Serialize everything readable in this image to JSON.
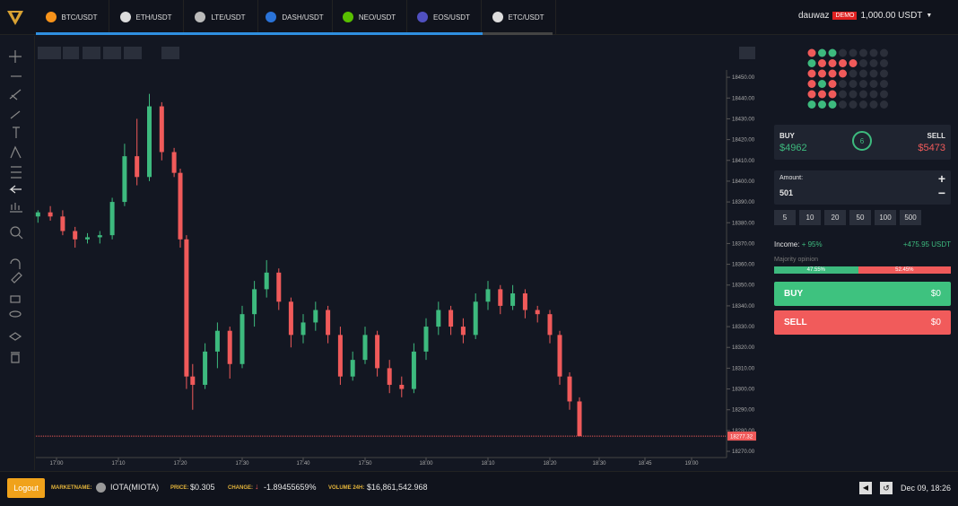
{
  "tabs": [
    "BTC/USDT",
    "ETH/USDT",
    "LTE/USDT",
    "DASH/USDT",
    "NEO/USDT",
    "EOS/USDT",
    "ETC/USDT"
  ],
  "account": {
    "user": "dauwaz",
    "badge": "DEMO",
    "balance": "1,000.00 USDT"
  },
  "chart_data": {
    "type": "candlestick",
    "up_color": "#3dba7e",
    "down_color": "#f05a5a",
    "ylim": [
      18267,
      18453.5
    ],
    "yticks": [
      {
        "value": 18450,
        "label": "18450.00"
      },
      {
        "value": 18440,
        "label": "18440.00"
      },
      {
        "value": 18430,
        "label": "18430.00"
      },
      {
        "value": 18420,
        "label": "18420.00"
      },
      {
        "value": 18410,
        "label": "18410.00"
      },
      {
        "value": 18400,
        "label": "18400.00"
      },
      {
        "value": 18390,
        "label": "18390.00"
      },
      {
        "value": 18380,
        "label": "18380.00"
      },
      {
        "value": 18370,
        "label": "18370.00"
      },
      {
        "value": 18360,
        "label": "18360.00"
      },
      {
        "value": 18350,
        "label": "18350.00"
      },
      {
        "value": 18340,
        "label": "18340.00"
      },
      {
        "value": 18330,
        "label": "18330.00"
      },
      {
        "value": 18320,
        "label": "18320.00"
      },
      {
        "value": 18310,
        "label": "18310.00"
      },
      {
        "value": 18300,
        "label": "18300.00"
      },
      {
        "value": 18290,
        "label": "18290.00"
      },
      {
        "value": 18280,
        "label": "18280.00"
      },
      {
        "value": 18270,
        "label": "18270.00"
      }
    ],
    "xticks": [
      "17:00",
      "17:10",
      "17:20",
      "17:30",
      "17:40",
      "17:50",
      "18:00",
      "18:10",
      "18:20",
      "18:30",
      "18:45",
      "19:00"
    ],
    "last_price": {
      "value": 18277.32,
      "label": "18277.32"
    },
    "candles": [
      {
        "t": "16:57",
        "open": 18383,
        "high": 18386,
        "low": 18380,
        "close": 18385
      },
      {
        "t": "16:59",
        "open": 18385,
        "high": 18388,
        "low": 18381,
        "close": 18383
      },
      {
        "t": "17:01",
        "open": 18383,
        "high": 18386,
        "low": 18374,
        "close": 18376
      },
      {
        "t": "17:03",
        "open": 18376,
        "high": 18378,
        "low": 18368,
        "close": 18372
      },
      {
        "t": "17:05",
        "open": 18372,
        "high": 18375,
        "low": 18370,
        "close": 18373
      },
      {
        "t": "17:07",
        "open": 18373,
        "high": 18376,
        "low": 18370,
        "close": 18374
      },
      {
        "t": "17:09",
        "open": 18374,
        "high": 18392,
        "low": 18372,
        "close": 18390
      },
      {
        "t": "17:11",
        "open": 18390,
        "high": 18418,
        "low": 18388,
        "close": 18412
      },
      {
        "t": "17:13",
        "open": 18412,
        "high": 18430,
        "low": 18398,
        "close": 18402
      },
      {
        "t": "17:15",
        "open": 18402,
        "high": 18442,
        "low": 18400,
        "close": 18436
      },
      {
        "t": "17:17",
        "open": 18436,
        "high": 18438,
        "low": 18410,
        "close": 18414
      },
      {
        "t": "17:19",
        "open": 18414,
        "high": 18416,
        "low": 18402,
        "close": 18404
      },
      {
        "t": "17:20",
        "open": 18404,
        "high": 18406,
        "low": 18368,
        "close": 18372
      },
      {
        "t": "17:21",
        "open": 18372,
        "high": 18374,
        "low": 18300,
        "close": 18306
      },
      {
        "t": "17:22",
        "open": 18306,
        "high": 18312,
        "low": 18290,
        "close": 18302
      },
      {
        "t": "17:24",
        "open": 18302,
        "high": 18322,
        "low": 18300,
        "close": 18318
      },
      {
        "t": "17:26",
        "open": 18318,
        "high": 18332,
        "low": 18310,
        "close": 18328
      },
      {
        "t": "17:28",
        "open": 18328,
        "high": 18330,
        "low": 18305,
        "close": 18312
      },
      {
        "t": "17:30",
        "open": 18312,
        "high": 18340,
        "low": 18310,
        "close": 18336
      },
      {
        "t": "17:32",
        "open": 18336,
        "high": 18352,
        "low": 18330,
        "close": 18348
      },
      {
        "t": "17:34",
        "open": 18348,
        "high": 18362,
        "low": 18344,
        "close": 18356
      },
      {
        "t": "17:36",
        "open": 18356,
        "high": 18358,
        "low": 18338,
        "close": 18342
      },
      {
        "t": "17:38",
        "open": 18342,
        "high": 18344,
        "low": 18320,
        "close": 18326
      },
      {
        "t": "17:40",
        "open": 18326,
        "high": 18336,
        "low": 18322,
        "close": 18332
      },
      {
        "t": "17:42",
        "open": 18332,
        "high": 18342,
        "low": 18328,
        "close": 18338
      },
      {
        "t": "17:44",
        "open": 18338,
        "high": 18340,
        "low": 18322,
        "close": 18326
      },
      {
        "t": "17:46",
        "open": 18326,
        "high": 18330,
        "low": 18302,
        "close": 18306
      },
      {
        "t": "17:48",
        "open": 18306,
        "high": 18318,
        "low": 18304,
        "close": 18314
      },
      {
        "t": "17:50",
        "open": 18314,
        "high": 18330,
        "low": 18312,
        "close": 18326
      },
      {
        "t": "17:52",
        "open": 18326,
        "high": 18328,
        "low": 18306,
        "close": 18310
      },
      {
        "t": "17:54",
        "open": 18310,
        "high": 18314,
        "low": 18298,
        "close": 18302
      },
      {
        "t": "17:56",
        "open": 18302,
        "high": 18306,
        "low": 18296,
        "close": 18300
      },
      {
        "t": "17:58",
        "open": 18300,
        "high": 18322,
        "low": 18298,
        "close": 18318
      },
      {
        "t": "18:00",
        "open": 18318,
        "high": 18334,
        "low": 18314,
        "close": 18330
      },
      {
        "t": "18:02",
        "open": 18330,
        "high": 18342,
        "low": 18326,
        "close": 18338
      },
      {
        "t": "18:04",
        "open": 18338,
        "high": 18340,
        "low": 18326,
        "close": 18330
      },
      {
        "t": "18:06",
        "open": 18330,
        "high": 18334,
        "low": 18322,
        "close": 18326
      },
      {
        "t": "18:08",
        "open": 18326,
        "high": 18346,
        "low": 18324,
        "close": 18342
      },
      {
        "t": "18:10",
        "open": 18342,
        "high": 18352,
        "low": 18338,
        "close": 18348
      },
      {
        "t": "18:12",
        "open": 18348,
        "high": 18350,
        "low": 18336,
        "close": 18340
      },
      {
        "t": "18:14",
        "open": 18340,
        "high": 18350,
        "low": 18338,
        "close": 18346
      },
      {
        "t": "18:16",
        "open": 18346,
        "high": 18348,
        "low": 18334,
        "close": 18338
      },
      {
        "t": "18:18",
        "open": 18338,
        "high": 18340,
        "low": 18332,
        "close": 18336
      },
      {
        "t": "18:20",
        "open": 18336,
        "high": 18338,
        "low": 18322,
        "close": 18326
      },
      {
        "t": "18:22",
        "open": 18326,
        "high": 18328,
        "low": 18302,
        "close": 18306
      },
      {
        "t": "18:24",
        "open": 18306,
        "high": 18308,
        "low": 18290,
        "close": 18294
      },
      {
        "t": "18:26",
        "open": 18294,
        "high": 18296,
        "low": 18277.32,
        "close": 18277.32
      }
    ]
  },
  "trade": {
    "buy_label": "BUY",
    "buy_amount": "$4962",
    "timer": "6",
    "sell_label": "SELL",
    "sell_amount": "$5473",
    "amount_label": "Amount:",
    "amount": "501",
    "plus": "+",
    "minus": "−",
    "chips": [
      "5",
      "10",
      "20",
      "50",
      "100",
      "500"
    ],
    "income_label": "Income:",
    "income_pct": "+ 95%",
    "income_value": "+475.95 USDT",
    "majority_label": "Majority opinion",
    "majority_buy": {
      "value": 47.55,
      "label": "47.55%"
    },
    "majority_sell": {
      "value": 52.45,
      "label": "52.45%"
    },
    "buy_button": "BUY",
    "buy_button_value": "$0",
    "sell_button": "SELL",
    "sell_button_value": "$0"
  },
  "footer": {
    "logout": "Logout",
    "market_label": "MARKETNAME:",
    "market": "IOTA(MIOTA)",
    "price_label": "PRICE:",
    "price": "$0.305",
    "change_label": "CHANGE:",
    "change": "-1.89455659%",
    "volume_label": "VOLUME 24H:",
    "volume": "$16,861,542.968",
    "datetime": "Dec 09, 18:26"
  }
}
